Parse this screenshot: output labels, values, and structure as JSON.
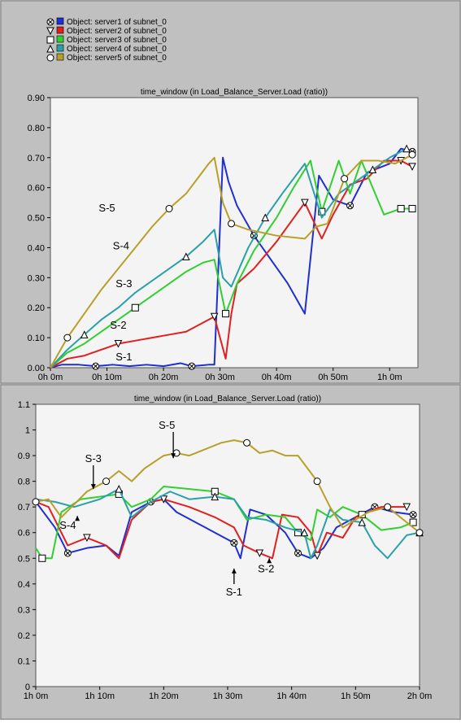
{
  "chart_data": [
    {
      "type": "line",
      "title": "time_window (in Load_Balance_Server.Load (ratio))",
      "legend_position": "top-left",
      "grid": false,
      "xlim": [
        0,
        65
      ],
      "ylim": [
        0,
        0.9
      ],
      "x_ticks": [
        "0h 0m",
        "0h 10m",
        "0h 20m",
        "0h 30m",
        "0h 40m",
        "0h 50m",
        "1h 0m"
      ],
      "y_ticks": [
        "0.00",
        "0.10",
        "0.20",
        "0.30",
        "0.40",
        "0.50",
        "0.60",
        "0.70",
        "0.80",
        "0.90"
      ],
      "series": [
        {
          "name": "Object: server1 of subnet_0",
          "color": "#1f2fd0",
          "marker": "x",
          "points": [
            [
              0,
              0
            ],
            [
              2,
              0.01
            ],
            [
              5,
              0.01
            ],
            [
              8,
              0.005
            ],
            [
              11,
              0.01
            ],
            [
              14,
              0.005
            ],
            [
              17,
              0.01
            ],
            [
              20,
              0.005
            ],
            [
              23,
              0.015
            ],
            [
              25,
              0.005
            ],
            [
              28,
              0.01
            ],
            [
              29,
              0.01
            ],
            [
              30.5,
              0.7
            ],
            [
              31.5,
              0.62
            ],
            [
              33,
              0.54
            ],
            [
              36,
              0.44
            ],
            [
              39,
              0.36
            ],
            [
              42,
              0.28
            ],
            [
              45,
              0.18
            ],
            [
              47.5,
              0.64
            ],
            [
              50,
              0.56
            ],
            [
              53,
              0.54
            ],
            [
              56,
              0.65
            ],
            [
              60,
              0.68
            ],
            [
              62,
              0.73
            ],
            [
              64,
              0.72
            ]
          ]
        },
        {
          "name": "Object: server2 of subnet_0",
          "color": "#e02020",
          "marker": "triangle-down",
          "points": [
            [
              0,
              0
            ],
            [
              3,
              0.03
            ],
            [
              6,
              0.04
            ],
            [
              9,
              0.06
            ],
            [
              12,
              0.08
            ],
            [
              15,
              0.09
            ],
            [
              18,
              0.1
            ],
            [
              21,
              0.11
            ],
            [
              24,
              0.12
            ],
            [
              27,
              0.15
            ],
            [
              29,
              0.17
            ],
            [
              31,
              0.03
            ],
            [
              32,
              0.18
            ],
            [
              33,
              0.28
            ],
            [
              36,
              0.33
            ],
            [
              40,
              0.42
            ],
            [
              45,
              0.55
            ],
            [
              48,
              0.43
            ],
            [
              50,
              0.51
            ],
            [
              53,
              0.61
            ],
            [
              56,
              0.63
            ],
            [
              59,
              0.69
            ],
            [
              62,
              0.69
            ],
            [
              64,
              0.67
            ]
          ]
        },
        {
          "name": "Object: server3 of subnet_0",
          "color": "#30d030",
          "marker": "square",
          "points": [
            [
              0,
              0
            ],
            [
              3,
              0.05
            ],
            [
              6,
              0.08
            ],
            [
              9,
              0.12
            ],
            [
              12,
              0.16
            ],
            [
              15,
              0.2
            ],
            [
              18,
              0.24
            ],
            [
              21,
              0.28
            ],
            [
              24,
              0.32
            ],
            [
              27,
              0.35
            ],
            [
              29,
              0.36
            ],
            [
              31,
              0.18
            ],
            [
              33,
              0.28
            ],
            [
              36,
              0.39
            ],
            [
              40,
              0.5
            ],
            [
              43,
              0.6
            ],
            [
              46,
              0.69
            ],
            [
              48,
              0.52
            ],
            [
              51,
              0.69
            ],
            [
              53,
              0.58
            ],
            [
              55,
              0.69
            ],
            [
              57,
              0.6
            ],
            [
              59,
              0.51
            ],
            [
              62,
              0.53
            ],
            [
              64,
              0.53
            ]
          ]
        },
        {
          "name": "Object: server4 of subnet_0",
          "color": "#2aa0a8",
          "marker": "triangle-up",
          "points": [
            [
              0,
              0
            ],
            [
              3,
              0.06
            ],
            [
              6,
              0.11
            ],
            [
              9,
              0.16
            ],
            [
              12,
              0.2
            ],
            [
              15,
              0.25
            ],
            [
              18,
              0.29
            ],
            [
              21,
              0.33
            ],
            [
              24,
              0.37
            ],
            [
              27,
              0.42
            ],
            [
              29,
              0.46
            ],
            [
              30.5,
              0.3
            ],
            [
              32,
              0.27
            ],
            [
              35,
              0.4
            ],
            [
              38,
              0.5
            ],
            [
              41,
              0.58
            ],
            [
              45,
              0.68
            ],
            [
              48,
              0.5
            ],
            [
              51,
              0.58
            ],
            [
              54,
              0.62
            ],
            [
              57,
              0.66
            ],
            [
              60,
              0.7
            ],
            [
              63,
              0.73
            ]
          ]
        },
        {
          "name": "Object: server5 of subnet_0",
          "color": "#b8a028",
          "marker": "circle",
          "points": [
            [
              0,
              0
            ],
            [
              3,
              0.1
            ],
            [
              6,
              0.18
            ],
            [
              9,
              0.26
            ],
            [
              12,
              0.33
            ],
            [
              15,
              0.4
            ],
            [
              18,
              0.47
            ],
            [
              21,
              0.53
            ],
            [
              24,
              0.58
            ],
            [
              26,
              0.63
            ],
            [
              28,
              0.68
            ],
            [
              29,
              0.7
            ],
            [
              30.5,
              0.55
            ],
            [
              32,
              0.48
            ],
            [
              35,
              0.46
            ],
            [
              40,
              0.44
            ],
            [
              45,
              0.43
            ],
            [
              47,
              0.47
            ],
            [
              49,
              0.48
            ],
            [
              52,
              0.63
            ],
            [
              55,
              0.69
            ],
            [
              58,
              0.69
            ],
            [
              61,
              0.68
            ],
            [
              64,
              0.71
            ]
          ]
        }
      ],
      "annotations": [
        {
          "text": "S-5",
          "x": 10,
          "y": 0.52
        },
        {
          "text": "S-4",
          "x": 12.5,
          "y": 0.395
        },
        {
          "text": "S-3",
          "x": 13,
          "y": 0.268
        },
        {
          "text": "S-2",
          "x": 12,
          "y": 0.13
        },
        {
          "text": "S-1",
          "x": 13,
          "y": 0.025
        }
      ]
    },
    {
      "type": "line",
      "title": "time_window (in Load_Balance_Server.Load (ratio))",
      "grid": false,
      "xlim": [
        60,
        120
      ],
      "ylim": [
        0,
        1.1
      ],
      "x_ticks": [
        "1h 0m",
        "1h 10m",
        "1h 20m",
        "1h 30m",
        "1h 40m",
        "1h 50m",
        "2h 0m"
      ],
      "y_ticks": [
        "0",
        "0.1",
        "0.2",
        "0.3",
        "0.4",
        "0.5",
        "0.6",
        "0.7",
        "0.8",
        "0.9",
        "1",
        "1.1"
      ],
      "series": [
        {
          "color": "#1f2fd0",
          "points": [
            [
              60,
              0.72
            ],
            [
              63,
              0.62
            ],
            [
              65,
              0.52
            ],
            [
              68,
              0.54
            ],
            [
              71,
              0.55
            ],
            [
              73,
              0.51
            ],
            [
              75,
              0.68
            ],
            [
              78,
              0.72
            ],
            [
              80,
              0.73
            ],
            [
              82,
              0.68
            ],
            [
              85,
              0.64
            ],
            [
              88,
              0.6
            ],
            [
              91,
              0.56
            ],
            [
              92,
              0.5
            ],
            [
              93.5,
              0.69
            ],
            [
              96,
              0.67
            ],
            [
              99,
              0.6
            ],
            [
              101,
              0.52
            ],
            [
              103,
              0.5
            ],
            [
              105,
              0.54
            ],
            [
              107,
              0.62
            ],
            [
              110,
              0.66
            ],
            [
              113,
              0.7
            ],
            [
              116,
              0.68
            ],
            [
              119,
              0.67
            ]
          ]
        },
        {
          "color": "#e02020",
          "points": [
            [
              60,
              0.72
            ],
            [
              62,
              0.7
            ],
            [
              65,
              0.55
            ],
            [
              68,
              0.58
            ],
            [
              71,
              0.55
            ],
            [
              73,
              0.5
            ],
            [
              75,
              0.65
            ],
            [
              78,
              0.72
            ],
            [
              80,
              0.73
            ],
            [
              84,
              0.7
            ],
            [
              88,
              0.66
            ],
            [
              91,
              0.62
            ],
            [
              92.5,
              0.55
            ],
            [
              95,
              0.52
            ],
            [
              97,
              0.5
            ],
            [
              98.5,
              0.67
            ],
            [
              101,
              0.66
            ],
            [
              103,
              0.6
            ],
            [
              104,
              0.51
            ],
            [
              105.5,
              0.6
            ],
            [
              108,
              0.58
            ],
            [
              110,
              0.66
            ],
            [
              114,
              0.7
            ],
            [
              118,
              0.7
            ]
          ]
        },
        {
          "color": "#30d030",
          "points": [
            [
              60,
              0.54
            ],
            [
              61,
              0.5
            ],
            [
              62.5,
              0.5
            ],
            [
              64,
              0.68
            ],
            [
              67,
              0.73
            ],
            [
              70,
              0.74
            ],
            [
              73,
              0.75
            ],
            [
              75,
              0.7
            ],
            [
              78,
              0.73
            ],
            [
              80,
              0.78
            ],
            [
              84,
              0.77
            ],
            [
              88,
              0.76
            ],
            [
              91,
              0.73
            ],
            [
              93,
              0.65
            ],
            [
              96,
              0.67
            ],
            [
              99,
              0.66
            ],
            [
              101,
              0.6
            ],
            [
              103,
              0.57
            ],
            [
              104,
              0.69
            ],
            [
              106,
              0.66
            ],
            [
              108,
              0.7
            ],
            [
              111,
              0.67
            ],
            [
              114,
              0.61
            ],
            [
              117,
              0.62
            ],
            [
              119,
              0.64
            ]
          ]
        },
        {
          "color": "#2aa0a8",
          "points": [
            [
              60,
              0.73
            ],
            [
              63,
              0.72
            ],
            [
              66,
              0.7
            ],
            [
              70,
              0.73
            ],
            [
              73,
              0.77
            ],
            [
              75,
              0.66
            ],
            [
              78,
              0.72
            ],
            [
              81,
              0.76
            ],
            [
              84,
              0.73
            ],
            [
              88,
              0.74
            ],
            [
              91,
              0.73
            ],
            [
              93,
              0.66
            ],
            [
              96,
              0.65
            ],
            [
              99,
              0.62
            ],
            [
              102,
              0.6
            ],
            [
              103,
              0.5
            ],
            [
              104,
              0.55
            ],
            [
              106,
              0.69
            ],
            [
              108,
              0.65
            ],
            [
              111,
              0.64
            ],
            [
              113,
              0.55
            ],
            [
              115,
              0.5
            ],
            [
              118,
              0.59
            ],
            [
              120,
              0.6
            ]
          ]
        },
        {
          "color": "#b8a028",
          "points": [
            [
              60,
              0.72
            ],
            [
              62,
              0.73
            ],
            [
              64,
              0.66
            ],
            [
              66,
              0.71
            ],
            [
              68,
              0.76
            ],
            [
              71,
              0.8
            ],
            [
              73,
              0.84
            ],
            [
              75,
              0.8
            ],
            [
              77,
              0.85
            ],
            [
              80,
              0.9
            ],
            [
              82,
              0.91
            ],
            [
              84,
              0.9
            ],
            [
              87,
              0.93
            ],
            [
              89,
              0.95
            ],
            [
              91,
              0.96
            ],
            [
              93,
              0.95
            ],
            [
              95,
              0.91
            ],
            [
              97,
              0.92
            ],
            [
              99,
              0.9
            ],
            [
              101,
              0.9
            ],
            [
              104,
              0.8
            ],
            [
              106,
              0.7
            ],
            [
              108,
              0.62
            ],
            [
              110,
              0.65
            ],
            [
              112,
              0.68
            ],
            [
              115,
              0.7
            ],
            [
              118,
              0.64
            ],
            [
              120,
              0.6
            ]
          ]
        }
      ],
      "annotations": [
        {
          "text": "S-5",
          "x": 80.5,
          "y": 1.005,
          "ax": 81.5,
          "ay": 0.89
        },
        {
          "text": "S-3",
          "x": 69,
          "y": 0.875,
          "ax": 69,
          "ay": 0.77
        },
        {
          "text": "S-4",
          "x": 65,
          "y": 0.615,
          "ax": 66.5,
          "ay": 0.665
        },
        {
          "text": "S-1",
          "x": 91,
          "y": 0.355,
          "ax": 91,
          "ay": 0.46
        },
        {
          "text": "S-2",
          "x": 96,
          "y": 0.445,
          "ax": 96.5,
          "ay": 0.5
        }
      ]
    }
  ]
}
